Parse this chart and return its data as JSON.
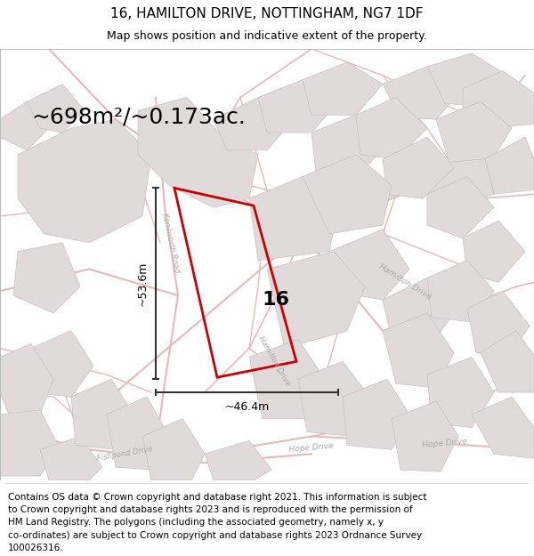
{
  "title": "16, HAMILTON DRIVE, NOTTINGHAM, NG7 1DF",
  "subtitle": "Map shows position and indicative extent of the property.",
  "area_text": "~698m²/~0.173ac.",
  "number_label": "16",
  "dim_width": "~46.4m",
  "dim_height": "~53.6m",
  "footer_lines": [
    "Contains OS data © Crown copyright and database right 2021. This information is subject",
    "to Crown copyright and database rights 2023 and is reproduced with the permission of",
    "HM Land Registry. The polygons (including the associated geometry, namely x, y",
    "co-ordinates) are subject to Crown copyright and database rights 2023 Ordnance Survey",
    "100026316."
  ],
  "title_fontsize": 11,
  "subtitle_fontsize": 9,
  "area_fontsize": 18,
  "footer_fontsize": 7.5,
  "map_bg": "#f7f4f4",
  "road_color": "#e8b8b8",
  "block_face": "#e0dada",
  "block_edge": "#ccbfbf",
  "property_color": "#cc0000",
  "dim_color": "#333333",
  "road_label_color": "#aaaaaa"
}
